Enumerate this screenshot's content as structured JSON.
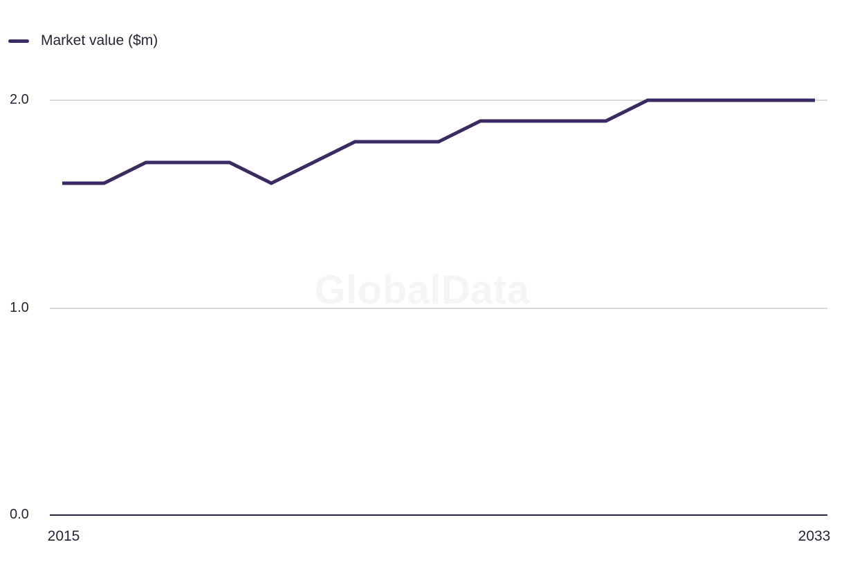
{
  "legend": {
    "label": "Market value ($m)"
  },
  "watermark": "GlobalData",
  "axes": {
    "y_ticks": [
      "2.0",
      "1.0",
      "0.0"
    ],
    "x_ticks": [
      "2015",
      "2033"
    ]
  },
  "colors": {
    "line": "#3b2a63",
    "grid": "#d9d9d9",
    "axis": "#232638",
    "text": "#232638",
    "watermark": "#f5f5f5"
  },
  "chart_data": {
    "type": "line",
    "title": "",
    "xlabel": "",
    "ylabel": "",
    "x": [
      2015,
      2016,
      2017,
      2018,
      2019,
      2020,
      2021,
      2022,
      2023,
      2024,
      2025,
      2026,
      2027,
      2028,
      2029,
      2030,
      2031,
      2032,
      2033
    ],
    "series": [
      {
        "name": "Market value ($m)",
        "values": [
          1.6,
          1.6,
          1.7,
          1.7,
          1.7,
          1.6,
          1.7,
          1.8,
          1.8,
          1.8,
          1.9,
          1.9,
          1.9,
          1.9,
          2.0,
          2.0,
          2.0,
          2.0,
          2.0
        ]
      }
    ],
    "ylim": [
      0.0,
      2.0
    ],
    "y_tick_values": [
      0.0,
      1.0,
      2.0
    ],
    "x_tick_labels_shown": [
      "2015",
      "2033"
    ],
    "grid": "horizontal-only",
    "legend_position": "top-left",
    "watermark": "GlobalData"
  }
}
